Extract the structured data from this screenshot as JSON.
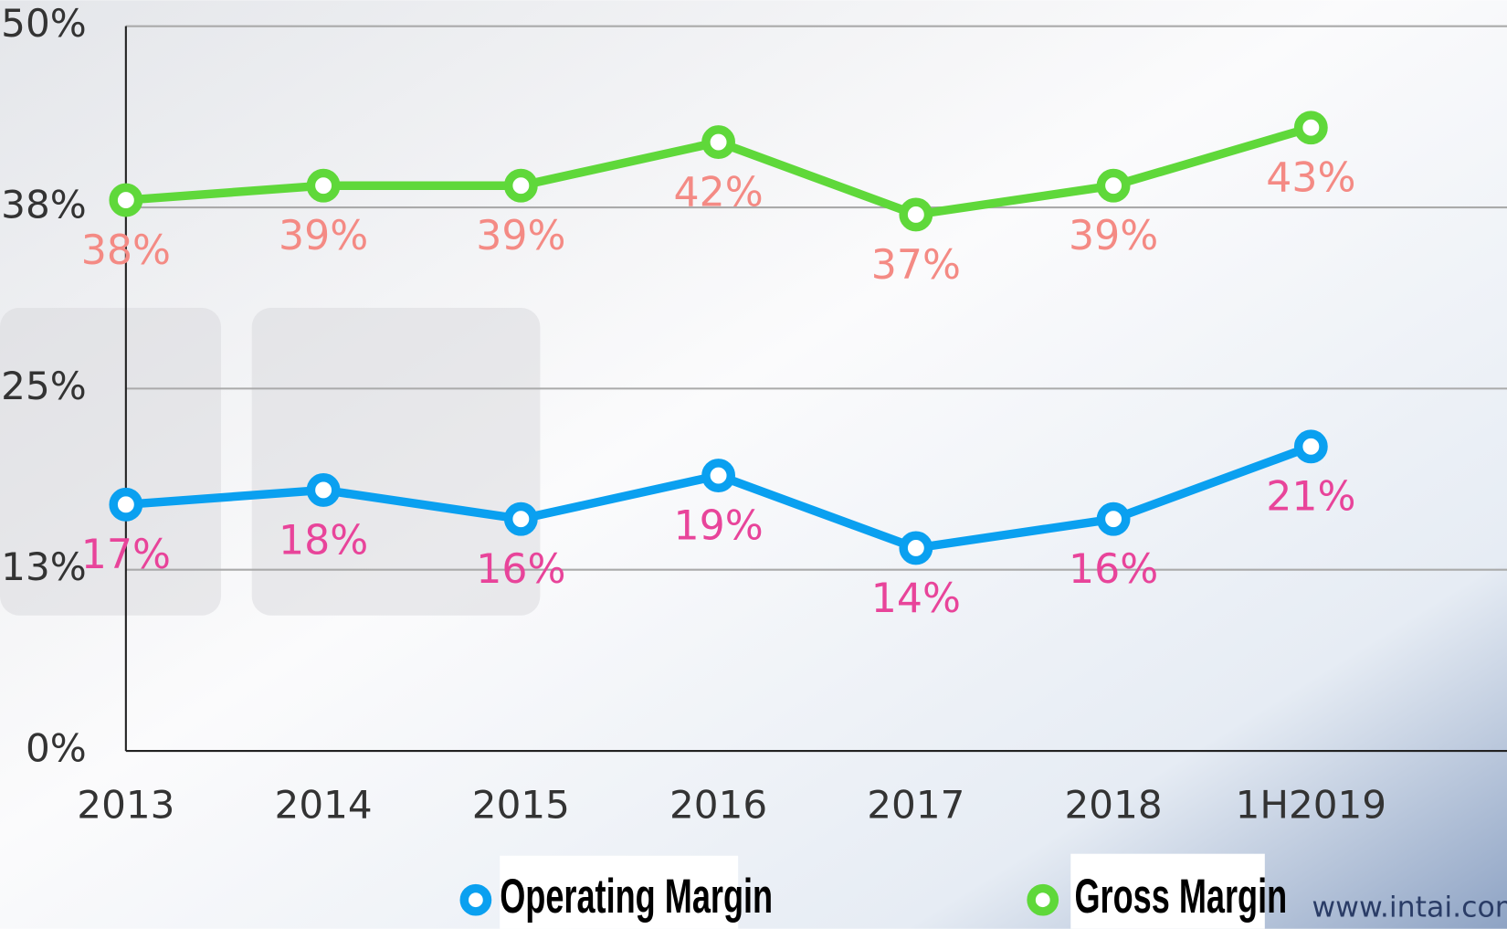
{
  "chart_data": {
    "type": "line",
    "categories": [
      "2013",
      "2014",
      "2015",
      "2016",
      "2017",
      "2018",
      "1H2019"
    ],
    "series": [
      {
        "name": "Operating Margin",
        "color": "#0aa0f0",
        "label_color": "#e8449a",
        "values": [
          17,
          18,
          16,
          19,
          14,
          16,
          21
        ],
        "value_labels": [
          "17%",
          "18%",
          "16%",
          "19%",
          "14%",
          "16%",
          "21%"
        ]
      },
      {
        "name": "Gross Margin",
        "color": "#5fd83a",
        "label_color": "#f48a84",
        "values": [
          38,
          39,
          39,
          42,
          37,
          39,
          43
        ],
        "value_labels": [
          "38%",
          "39%",
          "39%",
          "42%",
          "37%",
          "39%",
          "43%"
        ]
      }
    ],
    "ylim": [
      0,
      50
    ],
    "yticks": [
      {
        "value": 0,
        "label": "0%"
      },
      {
        "value": 12.5,
        "label": "13%"
      },
      {
        "value": 25,
        "label": "25%"
      },
      {
        "value": 37.5,
        "label": "38%"
      },
      {
        "value": 50,
        "label": "50%"
      }
    ],
    "grid": true,
    "source": "www.intai.com"
  }
}
